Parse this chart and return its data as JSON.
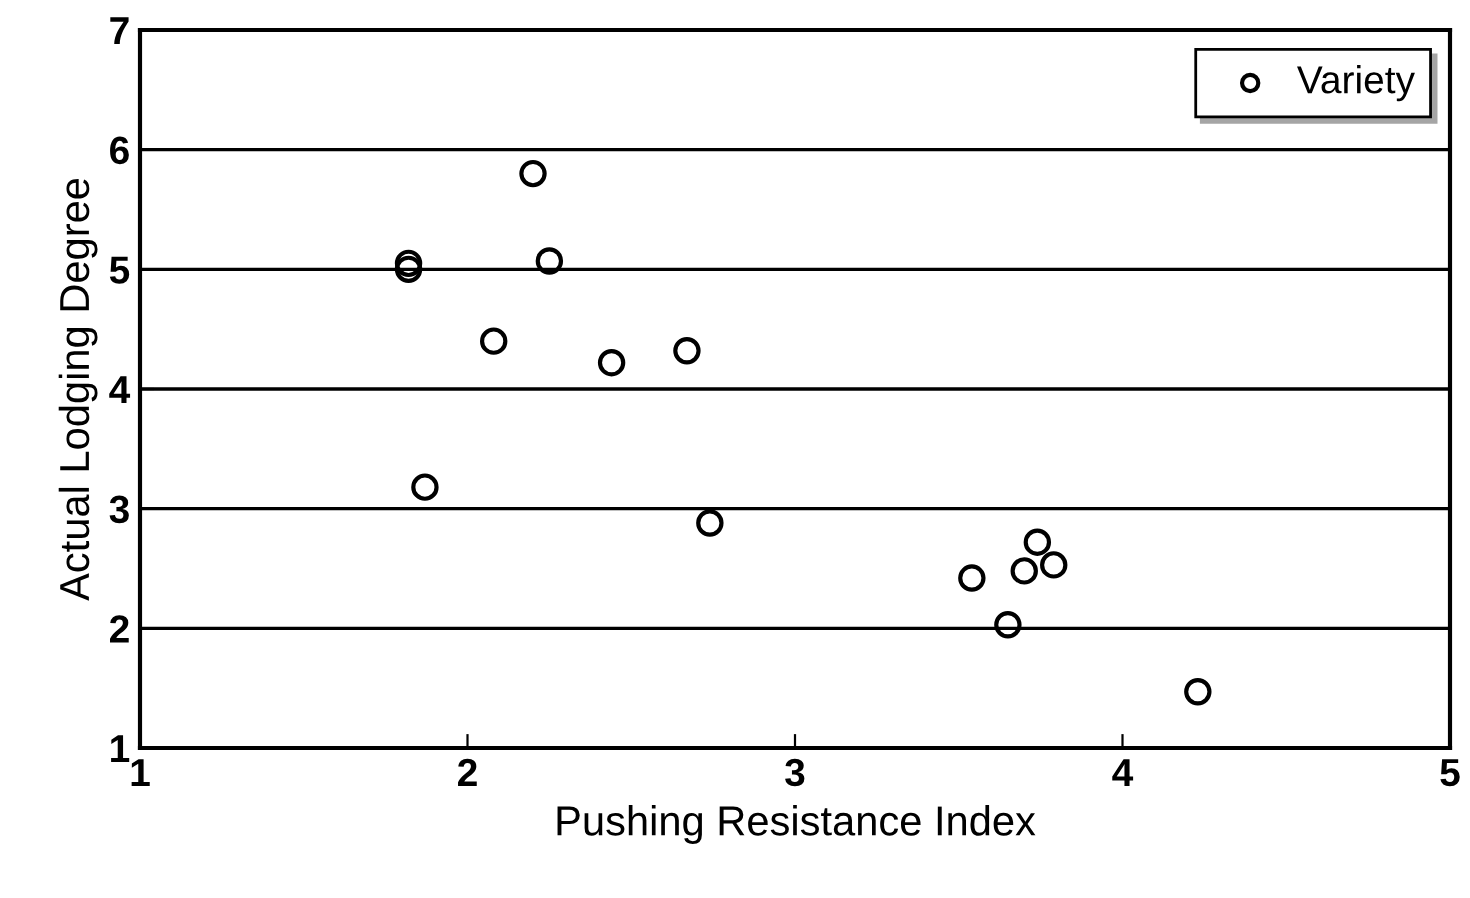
{
  "chart_data": {
    "type": "scatter",
    "xlabel": "Pushing Resistance Index",
    "ylabel": "Actual Lodging Degree",
    "x": [
      1.82,
      1.82,
      2.2,
      2.25,
      2.08,
      2.44,
      2.67,
      1.87,
      2.74,
      3.54,
      3.65,
      3.7,
      3.74,
      3.79,
      4.23
    ],
    "series": [
      {
        "name": "Variety",
        "color": "#000000",
        "values": [
          5.05,
          5.0,
          5.8,
          5.07,
          4.4,
          4.22,
          4.32,
          3.18,
          2.88,
          2.42,
          2.03,
          2.48,
          2.72,
          2.53,
          1.47
        ]
      }
    ],
    "xlim": [
      1,
      5
    ],
    "ylim": [
      1,
      7
    ],
    "xticks": [
      1,
      2,
      3,
      4,
      5
    ],
    "yticks": [
      1,
      2,
      3,
      4,
      5,
      6,
      7
    ],
    "grid": "y",
    "legend": "top right",
    "marker": "circle"
  }
}
